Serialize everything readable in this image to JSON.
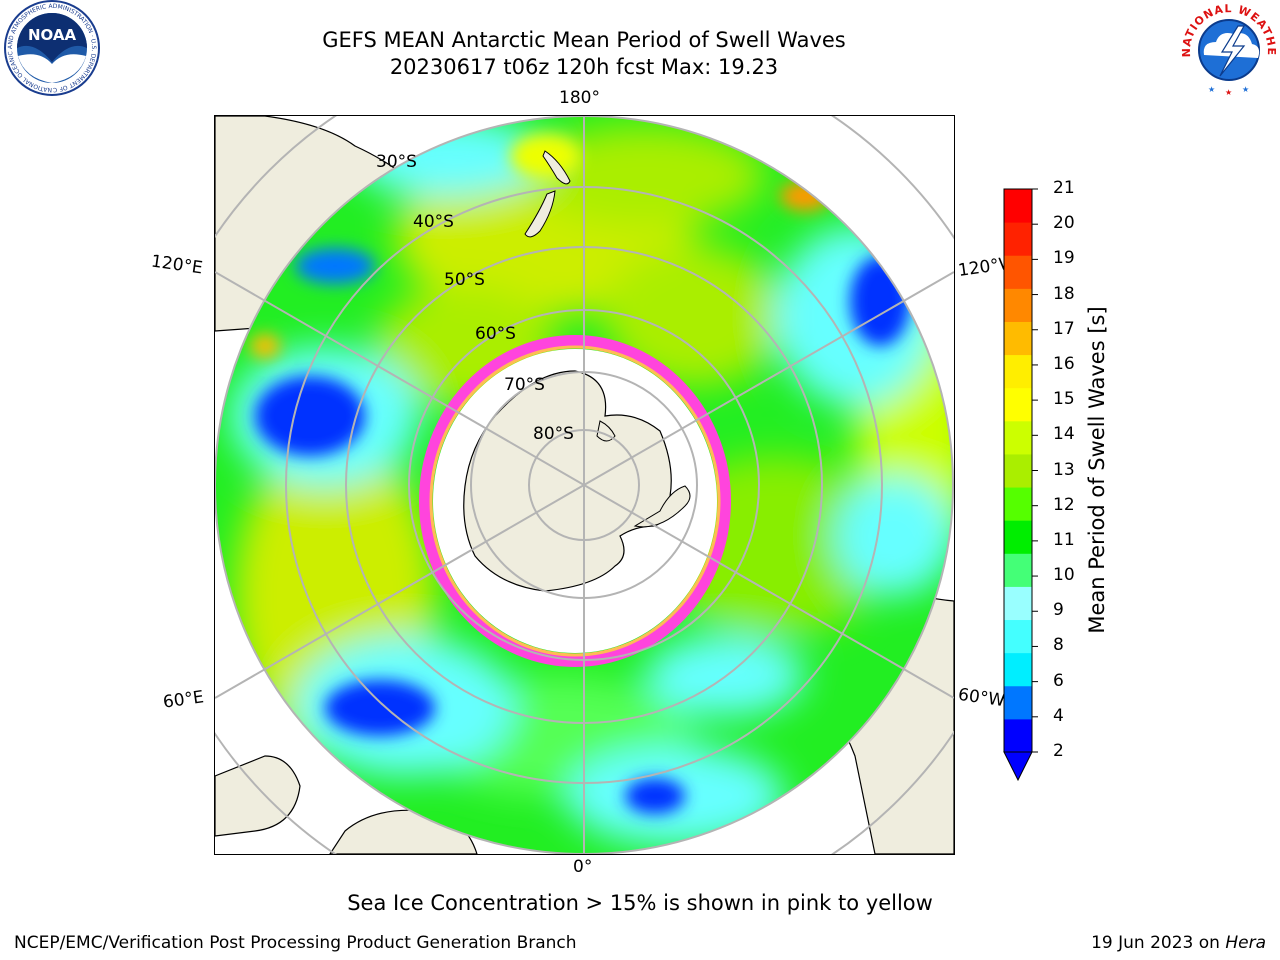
{
  "header": {
    "title_line1": "GEFS MEAN Antarctic Mean Period of Swell Waves",
    "title_line2": "20230617 t06z 120h fcst   Max: 19.23"
  },
  "logos": {
    "noaa_text": "NOAA",
    "noaa_ring_text": "NATIONAL OCEANIC AND ATMOSPHERIC ADMINISTRATION · U.S. DEPARTMENT OF COMMERCE",
    "nws_ring_text": "NATIONAL WEATHER SERVICE"
  },
  "map": {
    "projection": "south-polar-stereographic",
    "longitude_labels": [
      "180°",
      "120°E",
      "120°W",
      "60°E",
      "60°W",
      "0°"
    ],
    "latitude_labels": [
      "30°S",
      "40°S",
      "50°S",
      "60°S",
      "70°S",
      "80°S"
    ],
    "colors": {
      "land": "#efedde",
      "coast": "#000000",
      "grid": "#b4b4b4",
      "ice": "#ffffff",
      "ice_edge": "#ff44dd"
    }
  },
  "colorbar": {
    "label": "Mean Period of Swell Waves [s]",
    "ticks": [
      "21",
      "20",
      "19",
      "18",
      "17",
      "16",
      "15",
      "14",
      "13",
      "12",
      "11",
      "10",
      "9",
      "8",
      "6",
      "4",
      "2"
    ],
    "bin_colors": [
      "#0000ff",
      "#0077ff",
      "#00eeff",
      "#44ffff",
      "#99ffff",
      "#44ff77",
      "#00ee00",
      "#55ff00",
      "#aaee00",
      "#ccff00",
      "#ffff00",
      "#ffee00",
      "#ffbb00",
      "#ff8800",
      "#ff5500",
      "#ff2200",
      "#ff0000"
    ],
    "extend_min_color": "#0000ff"
  },
  "caption": "Sea Ice Concentration > 15% is shown in pink to yellow",
  "footer": {
    "left": "NCEP/EMC/Verification Post Processing Product Generation Branch",
    "date": "19 Jun 2023 on ",
    "machine": "Hera"
  }
}
